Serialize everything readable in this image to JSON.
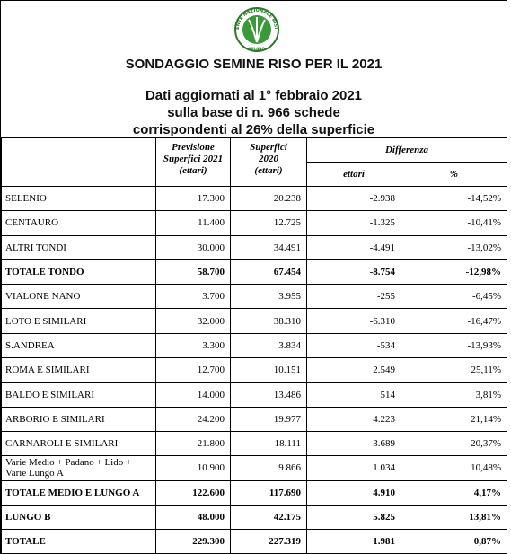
{
  "header": {
    "logo_text": "ENTE NAZIONALE RISI",
    "logo_city": "MILANO",
    "title": "SONDAGGIO SEMINE RISO PER IL 2021",
    "subtitle": [
      "Dati aggiornati al 1° febbraio 2021",
      "sulla base di n. 966 schede",
      "corrispondenti al 26% della superficie"
    ]
  },
  "table": {
    "headers": {
      "forecast": [
        "Previsione",
        "Superfici 2021",
        "(ettari)"
      ],
      "area_2020": [
        "Superfici",
        "2020",
        "(ettari)"
      ],
      "difference": "Differenza",
      "diff_ha": "ettari",
      "diff_pct": "%"
    },
    "rows": [
      [
        "SELENIO",
        "17.300",
        "20.238",
        "-2.938",
        "-14,52%"
      ],
      [
        "CENTAURO",
        "11.400",
        "12.725",
        "-1.325",
        "-10,41%"
      ],
      [
        "ALTRI TONDI",
        "30.000",
        "34.491",
        "-4.491",
        "-13,02%"
      ],
      [
        "TOTALE TONDO",
        "58.700",
        "67.454",
        "-8.754",
        "-12,98%"
      ],
      [
        "VIALONE NANO",
        "3.700",
        "3.955",
        "-255",
        "-6,45%"
      ],
      [
        "LOTO  E SIMILARI",
        "32.000",
        "38.310",
        "-6.310",
        "-16,47%"
      ],
      [
        "S.ANDREA",
        "3.300",
        "3.834",
        "-534",
        "-13,93%"
      ],
      [
        "ROMA E SIMILARI",
        "12.700",
        "10.151",
        "2.549",
        "25,11%"
      ],
      [
        "BALDO E SIMILARI",
        "14.000",
        "13.486",
        "514",
        "3,81%"
      ],
      [
        "ARBORIO  E SIMILARI",
        "24.200",
        "19.977",
        "4.223",
        "21,14%"
      ],
      [
        "CARNAROLI E SIMILARI",
        "21.800",
        "18.111",
        "3.689",
        "20,37%"
      ],
      [
        "Varie Medio + Padano + Lido + Varie Lungo A",
        "10.900",
        "9.866",
        "1.034",
        "10,48%"
      ],
      [
        "TOTALE MEDIO E LUNGO A",
        "122.600",
        "117.690",
        "4.910",
        "4,17%"
      ],
      [
        "LUNGO B",
        "48.000",
        "42.175",
        "5.825",
        "13,81%"
      ],
      [
        "TOTALE",
        "229.300",
        "227.319",
        "1.981",
        "0,87%"
      ]
    ]
  }
}
